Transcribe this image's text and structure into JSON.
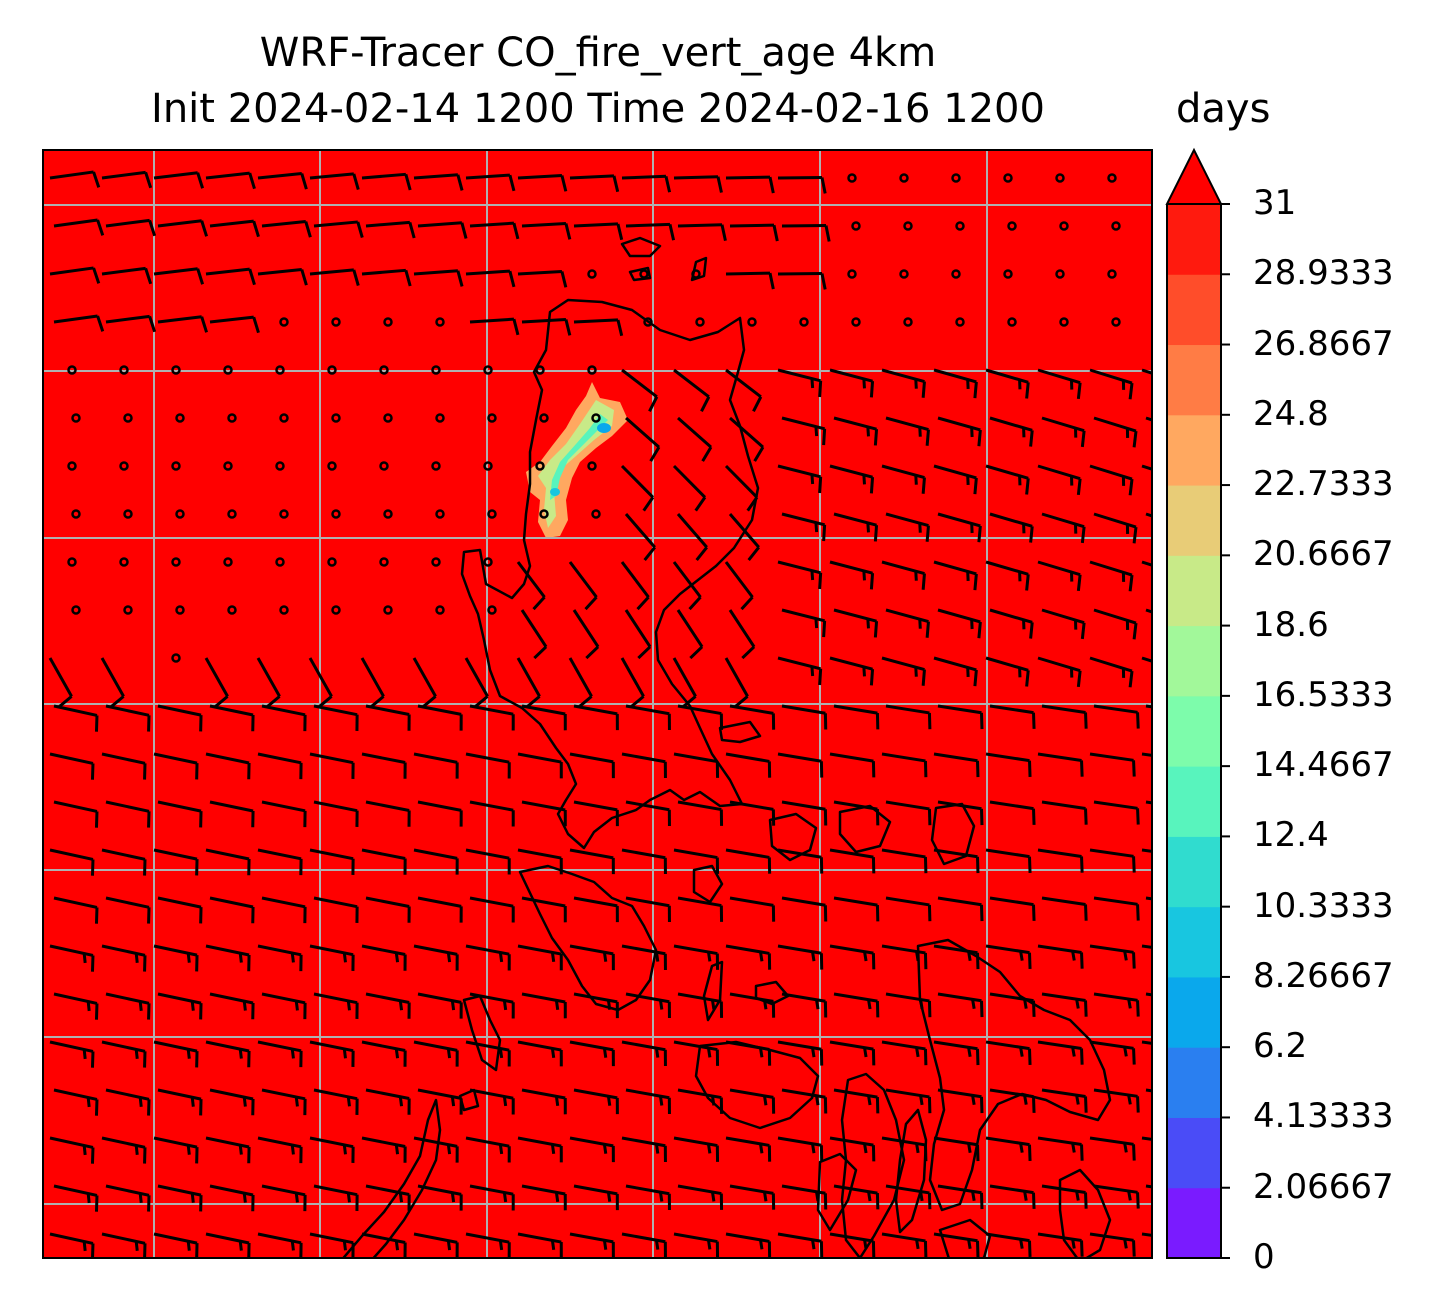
{
  "title": {
    "line1": "WRF-Tracer CO_fire_vert_age 4km",
    "line2": "Init 2024-02-14 1200 Time 2024-02-16 1200"
  },
  "colorbar": {
    "units": "days",
    "extend": "max",
    "tick_labels": [
      "0",
      "2.06667",
      "4.13333",
      "6.2",
      "8.26667",
      "10.3333",
      "12.4",
      "14.4667",
      "16.5333",
      "18.6",
      "20.6667",
      "22.7333",
      "24.8",
      "26.8667",
      "28.9333",
      "31"
    ],
    "level_colors": [
      "#7a1bff",
      "#4a4cf7",
      "#2a7ff0",
      "#0aa8ec",
      "#18c6e0",
      "#30dccf",
      "#58f4bd",
      "#7dfcab",
      "#a2f89a",
      "#c8ea88",
      "#e8cc77",
      "#ffa860",
      "#ff7c45",
      "#ff4d2a",
      "#ff1a0e"
    ],
    "over_color": "#ff0000"
  },
  "map": {
    "background_field_color": "#ff0000",
    "gridline_color": "#b0b0b0",
    "coastline_color": "#000000",
    "barb_color": "#000000",
    "plume_colors": [
      "#ffa860",
      "#c8ea88",
      "#58f4bd",
      "#18c6e0",
      "#0aa8ec"
    ]
  }
}
